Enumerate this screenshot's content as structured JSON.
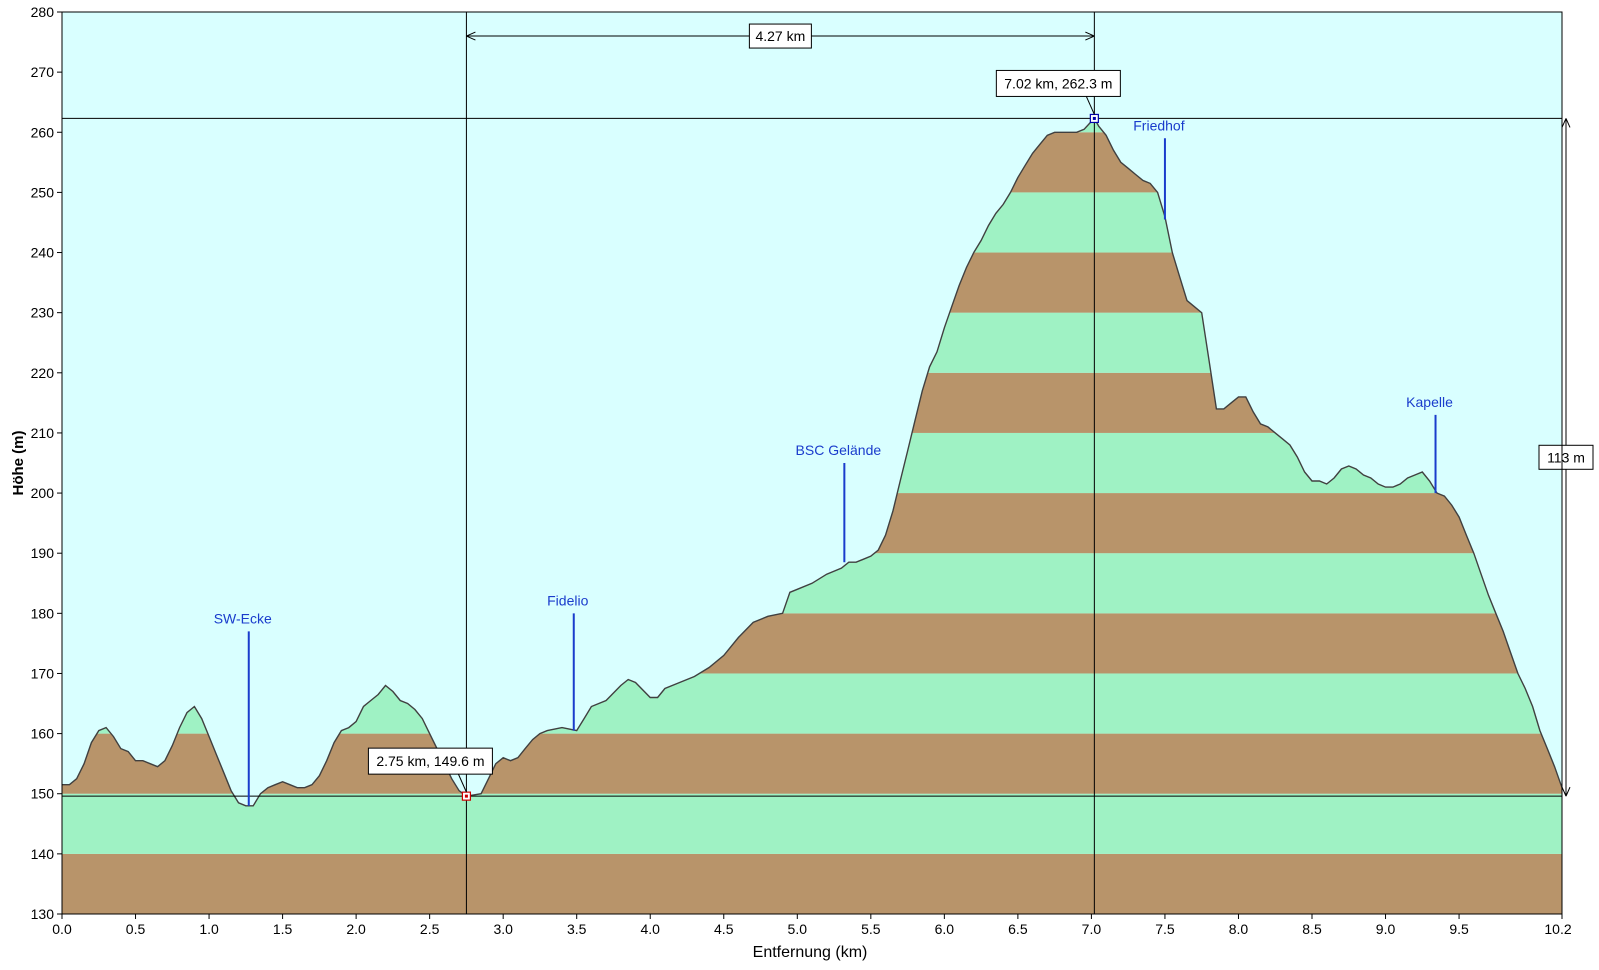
{
  "chart_data": {
    "type": "area",
    "xlabel": "Entfernung  (km)",
    "ylabel": "Höhe  (m)",
    "xlim": [
      0,
      10.2
    ],
    "ylim": [
      130,
      280
    ],
    "x_ticks": [
      0.0,
      0.5,
      1.0,
      1.5,
      2.0,
      2.5,
      3.0,
      3.5,
      4.0,
      4.5,
      5.0,
      5.5,
      6.0,
      6.5,
      7.0,
      7.5,
      8.0,
      8.5,
      9.0,
      9.5,
      10.2
    ],
    "x_tick_labels": [
      "0.0",
      "0.5",
      "1.0",
      "1.5",
      "2.0",
      "2.5",
      "3.0",
      "3.5",
      "4.0",
      "4.5",
      "5.0",
      "5.5",
      "6.0",
      "6.5",
      "7.0",
      "7.5",
      "8.0",
      "8.5",
      "9.0",
      "9.5",
      "10.2"
    ],
    "y_ticks": [
      130,
      140,
      150,
      160,
      170,
      180,
      190,
      200,
      210,
      220,
      230,
      240,
      250,
      260,
      270,
      280
    ],
    "band_colors": {
      "brown": "#b8946a",
      "green": "#9ff2c4",
      "background": "#d9ffff",
      "outline": "#404040"
    },
    "profile": [
      [
        0.0,
        151.5
      ],
      [
        0.05,
        151.5
      ],
      [
        0.1,
        152.5
      ],
      [
        0.15,
        155
      ],
      [
        0.2,
        158.5
      ],
      [
        0.25,
        160.5
      ],
      [
        0.3,
        161
      ],
      [
        0.35,
        159.5
      ],
      [
        0.4,
        157.5
      ],
      [
        0.45,
        157
      ],
      [
        0.5,
        155.5
      ],
      [
        0.55,
        155.5
      ],
      [
        0.6,
        155
      ],
      [
        0.65,
        154.5
      ],
      [
        0.7,
        155.5
      ],
      [
        0.75,
        158
      ],
      [
        0.8,
        161
      ],
      [
        0.85,
        163.5
      ],
      [
        0.9,
        164.5
      ],
      [
        0.95,
        162.5
      ],
      [
        1.0,
        159.5
      ],
      [
        1.05,
        156.5
      ],
      [
        1.1,
        153.5
      ],
      [
        1.15,
        150.5
      ],
      [
        1.2,
        148.5
      ],
      [
        1.25,
        148
      ],
      [
        1.3,
        148
      ],
      [
        1.35,
        150
      ],
      [
        1.4,
        151
      ],
      [
        1.45,
        151.5
      ],
      [
        1.5,
        152
      ],
      [
        1.55,
        151.5
      ],
      [
        1.6,
        151
      ],
      [
        1.65,
        151
      ],
      [
        1.7,
        151.5
      ],
      [
        1.75,
        153
      ],
      [
        1.8,
        155.5
      ],
      [
        1.85,
        158.5
      ],
      [
        1.9,
        160.5
      ],
      [
        1.95,
        161
      ],
      [
        2.0,
        162
      ],
      [
        2.05,
        164.5
      ],
      [
        2.1,
        165.5
      ],
      [
        2.15,
        166.5
      ],
      [
        2.2,
        168
      ],
      [
        2.25,
        167
      ],
      [
        2.3,
        165.5
      ],
      [
        2.35,
        165
      ],
      [
        2.4,
        164
      ],
      [
        2.45,
        162.5
      ],
      [
        2.5,
        160
      ],
      [
        2.55,
        157.5
      ],
      [
        2.6,
        155
      ],
      [
        2.65,
        152.5
      ],
      [
        2.7,
        150.5
      ],
      [
        2.75,
        149.6
      ],
      [
        2.8,
        149.8
      ],
      [
        2.85,
        150
      ],
      [
        2.9,
        152.5
      ],
      [
        2.95,
        155
      ],
      [
        3.0,
        156
      ],
      [
        3.05,
        155.5
      ],
      [
        3.1,
        156
      ],
      [
        3.15,
        157.5
      ],
      [
        3.2,
        159
      ],
      [
        3.25,
        160
      ],
      [
        3.3,
        160.5
      ],
      [
        3.4,
        161
      ],
      [
        3.5,
        160.5
      ],
      [
        3.55,
        162.5
      ],
      [
        3.6,
        164.5
      ],
      [
        3.7,
        165.5
      ],
      [
        3.8,
        168
      ],
      [
        3.85,
        169
      ],
      [
        3.9,
        168.5
      ],
      [
        4.0,
        166
      ],
      [
        4.05,
        166
      ],
      [
        4.1,
        167.5
      ],
      [
        4.2,
        168.5
      ],
      [
        4.3,
        169.5
      ],
      [
        4.4,
        171
      ],
      [
        4.5,
        173
      ],
      [
        4.6,
        176
      ],
      [
        4.7,
        178.5
      ],
      [
        4.8,
        179.5
      ],
      [
        4.9,
        180
      ],
      [
        4.95,
        183.5
      ],
      [
        5.0,
        184
      ],
      [
        5.1,
        185
      ],
      [
        5.2,
        186.5
      ],
      [
        5.3,
        187.5
      ],
      [
        5.35,
        188.5
      ],
      [
        5.4,
        188.5
      ],
      [
        5.45,
        189
      ],
      [
        5.5,
        189.5
      ],
      [
        5.55,
        190.5
      ],
      [
        5.6,
        193
      ],
      [
        5.65,
        197
      ],
      [
        5.7,
        202
      ],
      [
        5.75,
        207
      ],
      [
        5.8,
        212
      ],
      [
        5.85,
        217
      ],
      [
        5.9,
        221
      ],
      [
        5.95,
        223.5
      ],
      [
        6.0,
        227.5
      ],
      [
        6.05,
        231
      ],
      [
        6.1,
        234.5
      ],
      [
        6.15,
        237.5
      ],
      [
        6.2,
        240
      ],
      [
        6.25,
        242
      ],
      [
        6.3,
        244.5
      ],
      [
        6.35,
        246.5
      ],
      [
        6.4,
        248
      ],
      [
        6.45,
        250
      ],
      [
        6.5,
        252.5
      ],
      [
        6.55,
        254.5
      ],
      [
        6.6,
        256.5
      ],
      [
        6.65,
        258
      ],
      [
        6.7,
        259.5
      ],
      [
        6.75,
        260
      ],
      [
        6.8,
        260
      ],
      [
        6.85,
        260
      ],
      [
        6.9,
        260
      ],
      [
        6.95,
        260.5
      ],
      [
        7.0,
        261.8
      ],
      [
        7.02,
        262.3
      ],
      [
        7.05,
        261
      ],
      [
        7.1,
        259.5
      ],
      [
        7.15,
        257
      ],
      [
        7.2,
        255
      ],
      [
        7.25,
        254
      ],
      [
        7.3,
        253
      ],
      [
        7.35,
        252
      ],
      [
        7.4,
        251.5
      ],
      [
        7.45,
        250
      ],
      [
        7.5,
        246
      ],
      [
        7.55,
        240
      ],
      [
        7.6,
        236
      ],
      [
        7.65,
        232
      ],
      [
        7.7,
        231
      ],
      [
        7.75,
        230
      ],
      [
        7.8,
        222
      ],
      [
        7.85,
        214
      ],
      [
        7.9,
        214
      ],
      [
        7.95,
        215
      ],
      [
        8.0,
        216
      ],
      [
        8.05,
        216
      ],
      [
        8.1,
        213.5
      ],
      [
        8.15,
        211.5
      ],
      [
        8.2,
        211
      ],
      [
        8.25,
        210
      ],
      [
        8.3,
        209
      ],
      [
        8.35,
        208
      ],
      [
        8.4,
        206
      ],
      [
        8.45,
        203.5
      ],
      [
        8.5,
        202
      ],
      [
        8.55,
        202
      ],
      [
        8.6,
        201.5
      ],
      [
        8.65,
        202.5
      ],
      [
        8.7,
        204
      ],
      [
        8.75,
        204.5
      ],
      [
        8.8,
        204
      ],
      [
        8.85,
        203
      ],
      [
        8.9,
        202.5
      ],
      [
        8.95,
        201.5
      ],
      [
        9.0,
        201
      ],
      [
        9.05,
        201
      ],
      [
        9.1,
        201.5
      ],
      [
        9.15,
        202.5
      ],
      [
        9.2,
        203
      ],
      [
        9.25,
        203.5
      ],
      [
        9.3,
        202
      ],
      [
        9.35,
        200
      ],
      [
        9.4,
        199.5
      ],
      [
        9.45,
        198
      ],
      [
        9.5,
        196
      ],
      [
        9.55,
        193
      ],
      [
        9.6,
        190
      ],
      [
        9.65,
        186.5
      ],
      [
        9.7,
        183
      ],
      [
        9.75,
        180
      ],
      [
        9.8,
        177
      ],
      [
        9.85,
        173.5
      ],
      [
        9.9,
        170
      ],
      [
        9.95,
        167.5
      ],
      [
        10.0,
        164.5
      ],
      [
        10.05,
        160.5
      ],
      [
        10.1,
        157.5
      ],
      [
        10.15,
        154.5
      ],
      [
        10.2,
        151
      ]
    ],
    "pois": [
      {
        "name": "SW-Ecke",
        "x": 1.27,
        "top_y": 177,
        "bottom_y": 148
      },
      {
        "name": "Fidelio",
        "x": 3.48,
        "top_y": 180,
        "bottom_y": 160.5
      },
      {
        "name": "BSC Gelände",
        "x": 5.32,
        "top_y": 205,
        "bottom_y": 188.5
      },
      {
        "name": "Friedhof",
        "x": 7.5,
        "top_y": 259,
        "bottom_y": 245.5
      },
      {
        "name": "Kapelle",
        "x": 9.34,
        "top_y": 213,
        "bottom_y": 200
      }
    ],
    "markers": [
      {
        "label": "2.75 km, 149.6 m",
        "x": 2.75,
        "y": 149.6,
        "color": "#cc0000"
      },
      {
        "label": "7.02 km, 262.3 m",
        "x": 7.02,
        "y": 262.3,
        "color": "#0000aa"
      }
    ],
    "distance_annotation": {
      "label": "4.27 km",
      "from_x": 2.75,
      "to_x": 7.02,
      "y": 276
    },
    "height_annotation": {
      "label": "113 m",
      "x": 10.1,
      "from_y": 149.6,
      "to_y": 262.3
    }
  }
}
